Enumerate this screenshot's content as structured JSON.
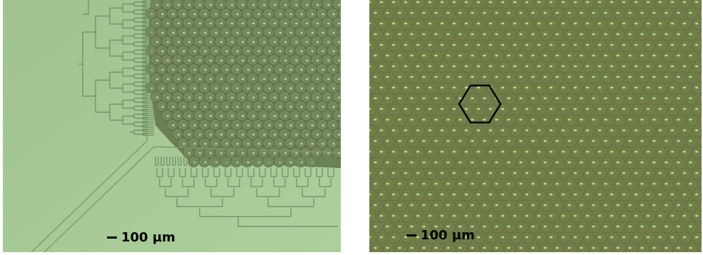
{
  "panels": {
    "left": {
      "scale_label": "100 µm",
      "background_color": "#a3c592",
      "droplet_color": "#6c7e55"
    },
    "right": {
      "scale_label": "100 µm",
      "background_color": "#6f7f48",
      "droplet_color": "#a8d07a"
    }
  }
}
